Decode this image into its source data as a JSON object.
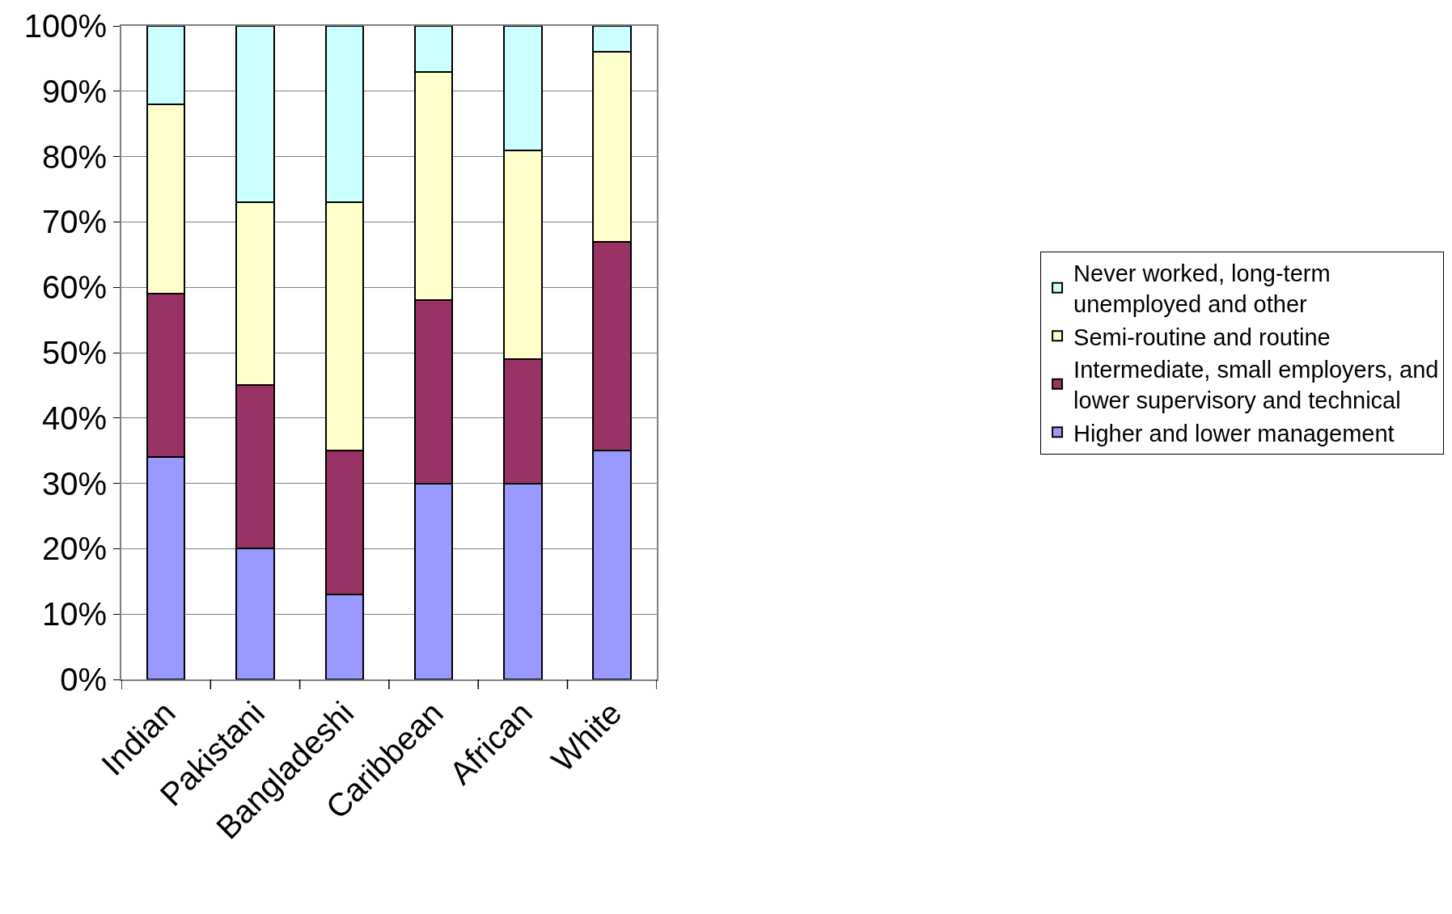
{
  "chart_data": {
    "type": "bar",
    "stacked": true,
    "categories": [
      "Indian",
      "Pakistani",
      "Bangladeshi",
      "Caribbean",
      "African",
      "White"
    ],
    "series": [
      {
        "name": "Higher and lower management",
        "color": "#9999ff",
        "values": [
          34,
          20,
          13,
          30,
          30,
          35
        ]
      },
      {
        "name": "Intermediate, small employers, and\nlower supervisory and technical",
        "color": "#993366",
        "values": [
          25,
          25,
          22,
          28,
          19,
          32
        ]
      },
      {
        "name": "Semi-routine and routine",
        "color": "#ffffcc",
        "values": [
          29,
          28,
          38,
          35,
          32,
          29
        ]
      },
      {
        "name": "Never worked, long-term\nunemployed and other",
        "color": "#ccffff",
        "values": [
          12,
          27,
          27,
          7,
          19,
          4
        ]
      }
    ],
    "ylim": [
      0,
      100
    ],
    "yticks": [
      {
        "value": 0,
        "label": "0%"
      },
      {
        "value": 10,
        "label": "10%"
      },
      {
        "value": 20,
        "label": "20%"
      },
      {
        "value": 30,
        "label": "30%"
      },
      {
        "value": 40,
        "label": "40%"
      },
      {
        "value": 50,
        "label": "50%"
      },
      {
        "value": 60,
        "label": "60%"
      },
      {
        "value": 70,
        "label": "70%"
      },
      {
        "value": 80,
        "label": "80%"
      },
      {
        "value": 90,
        "label": "90%"
      },
      {
        "value": 100,
        "label": "100%"
      }
    ],
    "grid": "y",
    "legend": "right"
  }
}
